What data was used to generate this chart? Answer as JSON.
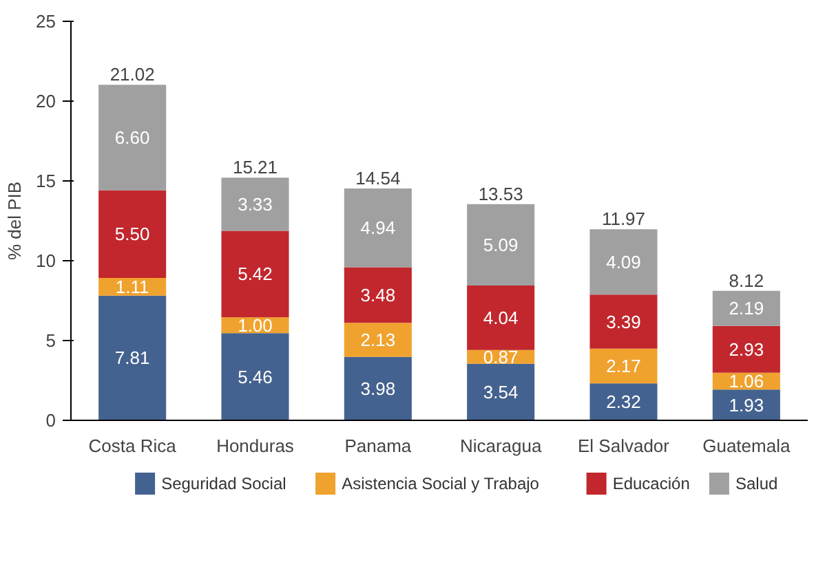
{
  "chart_data": {
    "type": "bar",
    "stacked": true,
    "ylabel": "% del PIB",
    "categories": [
      "Costa Rica",
      "Honduras",
      "Panama",
      "Nicaragua",
      "El Salvador",
      "Guatemala"
    ],
    "series": [
      {
        "name": "Seguridad Social",
        "color": "#44628f",
        "values": [
          7.81,
          5.46,
          3.98,
          3.54,
          2.32,
          1.93
        ],
        "value_labels": [
          "7.81",
          "5.46",
          "3.98",
          "3.54",
          "2.32",
          "1.93"
        ]
      },
      {
        "name": "Asistencia Social y Trabajo",
        "color": "#f0a22e",
        "values": [
          1.11,
          1.0,
          2.13,
          0.87,
          2.17,
          1.06
        ],
        "value_labels": [
          "1.11",
          "1.00",
          "2.13",
          "0.87",
          "2.17",
          "1.06"
        ]
      },
      {
        "name": "Educación",
        "color": "#c1272d",
        "values": [
          5.5,
          5.42,
          3.48,
          4.04,
          3.39,
          2.93
        ],
        "value_labels": [
          "5.50",
          "5.42",
          "3.48",
          "4.04",
          "3.39",
          "2.93"
        ]
      },
      {
        "name": "Salud",
        "color": "#a0a0a0",
        "values": [
          6.6,
          3.33,
          4.94,
          5.09,
          4.09,
          2.19
        ],
        "value_labels": [
          "6.60",
          "3.33",
          "4.94",
          "5.09",
          "4.09",
          "2.19"
        ]
      }
    ],
    "totals": [
      "21.02",
      "15.21",
      "14.54",
      "13.53",
      "11.97",
      "8.12"
    ],
    "ylim": [
      0,
      25
    ],
    "yticks": [
      0,
      5,
      10,
      15,
      20,
      25
    ],
    "grid": false,
    "legend": "bottom"
  }
}
